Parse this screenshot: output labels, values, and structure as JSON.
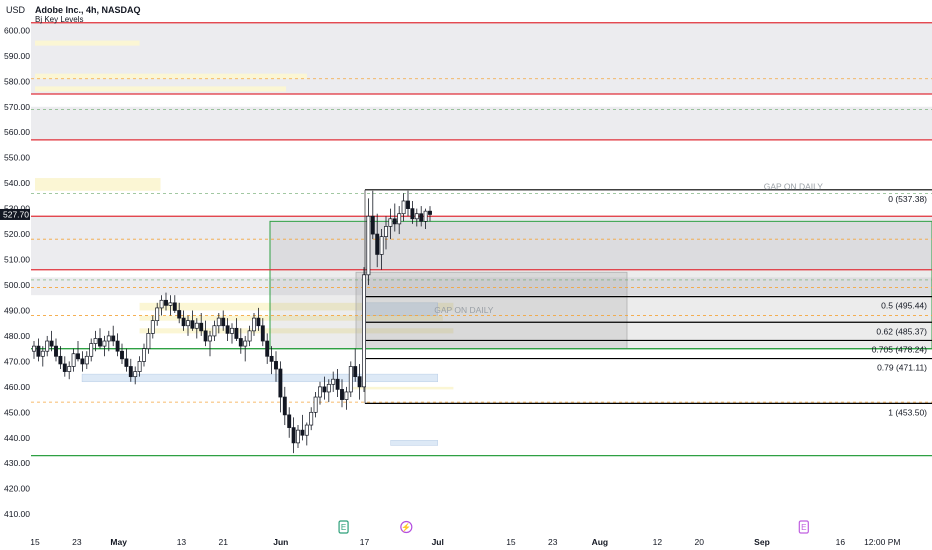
{
  "header": {
    "currency": "USD",
    "symbol_title": "Adobe Inc., 4h, NASDAQ",
    "indicator": "Bj Key Levels"
  },
  "colors": {
    "background": "#ffffff",
    "zone_fill": "#ececef",
    "red_line": "#e0303a",
    "green_line": "#2ea043",
    "black_line": "#000000",
    "candle": "#131722",
    "orange_dash": "#f4a53c",
    "pale_yellow": "#fbf6d4",
    "pale_blue": "#dde9f6",
    "event_earnings": "#2ea07a",
    "event_split": "#b450e0",
    "event_e2": "#c060e0"
  },
  "chart_data": {
    "type": "candlestick",
    "title": "Adobe Inc., 4h, NASDAQ",
    "ylim": [
      403,
      608
    ],
    "current_price": "527.70",
    "y_ticks": [
      "410.00",
      "420.00",
      "430.00",
      "440.00",
      "450.00",
      "460.00",
      "470.00",
      "480.00",
      "490.00",
      "500.00",
      "510.00",
      "520.00",
      "530.00",
      "540.00",
      "550.00",
      "560.00",
      "570.00",
      "580.00",
      "590.00",
      "600.00"
    ],
    "x_ticks": [
      {
        "label": "15",
        "day": 0
      },
      {
        "label": "23",
        "day": 8
      },
      {
        "label": "May",
        "day": 16
      },
      {
        "label": "13",
        "day": 28
      },
      {
        "label": "21",
        "day": 36
      },
      {
        "label": "Jun",
        "day": 47
      },
      {
        "label": "17",
        "day": 63
      },
      {
        "label": "Jul",
        "day": 77
      },
      {
        "label": "15",
        "day": 91
      },
      {
        "label": "23",
        "day": 99
      },
      {
        "label": "Aug",
        "day": 108
      },
      {
        "label": "12",
        "day": 119
      },
      {
        "label": "20",
        "day": 127
      },
      {
        "label": "Sep",
        "day": 139
      },
      {
        "label": "16",
        "day": 154
      },
      {
        "label": "12:00 PM",
        "day": 162
      }
    ],
    "gray_zones": [
      [
        575,
        603
      ],
      [
        557,
        570
      ],
      [
        506,
        527
      ],
      [
        496,
        503
      ]
    ],
    "red_levels": [
      603,
      575,
      557,
      527,
      506
    ],
    "green_levels": [
      433,
      475
    ],
    "fib_levels": [
      {
        "label": "0 (537.38)",
        "value": 537.38
      },
      {
        "label": "0.5 (495.44)",
        "value": 495.44
      },
      {
        "label": "0.62 (485.37)",
        "value": 485.37
      },
      {
        "label": "0.705 (478.24)",
        "value": 478.24
      },
      {
        "label": "0.79 (471.11)",
        "value": 471.11
      },
      {
        "label": "1 (453.50)",
        "value": 453.5
      }
    ],
    "orange_dashed": [
      581,
      518,
      499,
      488,
      454
    ],
    "gray_dashed": [
      569,
      536,
      502
    ],
    "annotations": [
      {
        "text": "GAP ON DAILY",
        "day": 145,
        "value": 537.5
      },
      {
        "text": "GAP ON DAILY",
        "day": 82,
        "value": 489
      }
    ],
    "events": [
      {
        "label": "E",
        "day": 59,
        "kind": "earnings"
      },
      {
        "label": "⚡",
        "day": 71,
        "kind": "split"
      },
      {
        "label": "E",
        "day": 147,
        "kind": "e2"
      }
    ],
    "candles": [
      [
        474,
        478,
        471,
        476
      ],
      [
        476,
        479,
        470,
        472
      ],
      [
        472,
        476,
        468,
        474
      ],
      [
        474,
        480,
        472,
        478
      ],
      [
        478,
        482,
        474,
        476
      ],
      [
        476,
        479,
        470,
        472
      ],
      [
        472,
        476,
        467,
        469
      ],
      [
        469,
        472,
        464,
        466
      ],
      [
        466,
        470,
        463,
        468
      ],
      [
        468,
        475,
        466,
        473
      ],
      [
        473,
        478,
        470,
        471
      ],
      [
        471,
        474,
        466,
        469
      ],
      [
        469,
        474,
        467,
        472
      ],
      [
        472,
        479,
        470,
        477
      ],
      [
        477,
        482,
        474,
        479
      ],
      [
        479,
        483,
        475,
        476
      ],
      [
        476,
        480,
        472,
        478
      ],
      [
        478,
        482,
        474,
        480
      ],
      [
        480,
        484,
        476,
        478
      ],
      [
        478,
        481,
        472,
        474
      ],
      [
        474,
        477,
        469,
        471
      ],
      [
        471,
        475,
        466,
        468
      ],
      [
        468,
        471,
        462,
        464
      ],
      [
        464,
        468,
        461,
        466
      ],
      [
        466,
        472,
        464,
        470
      ],
      [
        470,
        477,
        468,
        475
      ],
      [
        475,
        483,
        473,
        481
      ],
      [
        481,
        488,
        479,
        486
      ],
      [
        486,
        493,
        484,
        491
      ],
      [
        491,
        496,
        488,
        494
      ],
      [
        494,
        497,
        490,
        492
      ],
      [
        492,
        496,
        488,
        493
      ],
      [
        493,
        496,
        489,
        490
      ],
      [
        490,
        493,
        485,
        487
      ],
      [
        487,
        490,
        482,
        484
      ],
      [
        484,
        488,
        480,
        486
      ],
      [
        486,
        490,
        482,
        483
      ],
      [
        483,
        487,
        479,
        485
      ],
      [
        485,
        489,
        480,
        482
      ],
      [
        482,
        486,
        476,
        478
      ],
      [
        478,
        482,
        472,
        480
      ],
      [
        480,
        486,
        478,
        484
      ],
      [
        484,
        489,
        481,
        487
      ],
      [
        487,
        490,
        482,
        484
      ],
      [
        484,
        487,
        478,
        481
      ],
      [
        481,
        485,
        477,
        483
      ],
      [
        483,
        487,
        478,
        479
      ],
      [
        479,
        483,
        473,
        476
      ],
      [
        476,
        480,
        470,
        478
      ],
      [
        478,
        484,
        476,
        482
      ],
      [
        482,
        489,
        480,
        487
      ],
      [
        487,
        491,
        482,
        484
      ],
      [
        484,
        487,
        476,
        478
      ],
      [
        478,
        481,
        469,
        472
      ],
      [
        472,
        476,
        465,
        470
      ],
      [
        470,
        474,
        462,
        467
      ],
      [
        467,
        470,
        450,
        456
      ],
      [
        456,
        460,
        445,
        449
      ],
      [
        449,
        452,
        440,
        444
      ],
      [
        444,
        448,
        434,
        438
      ],
      [
        438,
        445,
        436,
        443
      ],
      [
        443,
        449,
        439,
        441
      ],
      [
        441,
        446,
        437,
        445
      ],
      [
        445,
        452,
        443,
        450
      ],
      [
        450,
        458,
        448,
        456
      ],
      [
        456,
        462,
        453,
        460
      ],
      [
        460,
        464,
        455,
        458
      ],
      [
        458,
        463,
        454,
        461
      ],
      [
        461,
        466,
        458,
        463
      ],
      [
        463,
        467,
        456,
        459
      ],
      [
        459,
        463,
        452,
        455
      ],
      [
        455,
        460,
        451,
        458
      ],
      [
        458,
        470,
        456,
        468
      ],
      [
        468,
        475,
        462,
        464
      ],
      [
        464,
        469,
        455,
        460
      ],
      [
        460,
        507,
        458,
        504
      ],
      [
        504,
        534,
        500,
        527
      ],
      [
        527,
        537,
        518,
        520
      ],
      [
        520,
        528,
        507,
        512
      ],
      [
        512,
        522,
        506,
        519
      ],
      [
        519,
        527,
        514,
        523
      ],
      [
        523,
        530,
        518,
        526
      ],
      [
        526,
        532,
        521,
        524
      ],
      [
        524,
        531,
        520,
        528
      ],
      [
        528,
        536,
        525,
        533
      ],
      [
        533,
        537,
        527,
        530
      ],
      [
        530,
        533,
        524,
        526
      ],
      [
        526,
        530,
        523,
        528
      ],
      [
        528,
        531,
        523,
        525
      ],
      [
        525,
        530,
        522,
        529
      ],
      [
        529,
        531,
        525,
        527.7
      ]
    ]
  }
}
